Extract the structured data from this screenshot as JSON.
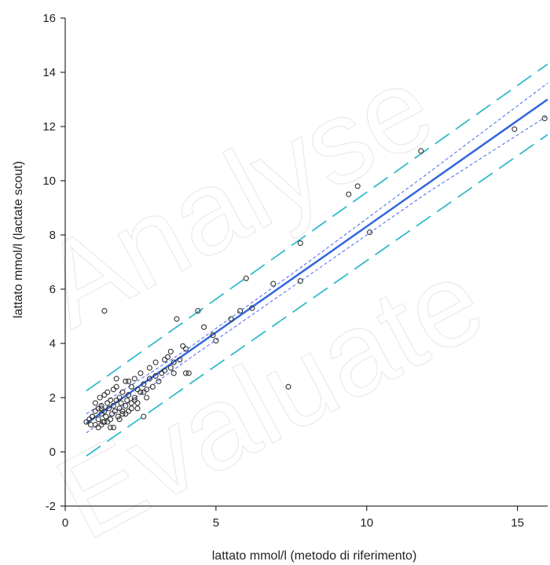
{
  "chart_data": {
    "type": "scatter",
    "xlabel": "lattato mmol/l (metodo di riferimento)",
    "ylabel": "lattato mmol/l (lactate scout)",
    "xlim": [
      0,
      16
    ],
    "ylim": [
      -2,
      16
    ],
    "xticks": [
      "0",
      "5",
      "10",
      "15"
    ],
    "yticks": [
      "-2",
      "0",
      "2",
      "4",
      "6",
      "8",
      "10",
      "12",
      "14",
      "16"
    ],
    "watermark": [
      "Analyse",
      "Evaluate"
    ],
    "grid": false,
    "colors": {
      "points": "#333333",
      "regression": "#3366dd",
      "confidence": "#4466ee",
      "prediction": "#33bbcc"
    },
    "series": [
      {
        "type": "points",
        "x": [
          0.7,
          0.8,
          0.85,
          0.9,
          1.0,
          1.0,
          1.1,
          1.1,
          1.15,
          1.2,
          1.2,
          1.25,
          1.3,
          1.3,
          1.35,
          1.4,
          1.4,
          1.45,
          1.5,
          1.5,
          1.55,
          1.6,
          1.6,
          1.65,
          1.7,
          1.7,
          1.75,
          1.8,
          1.8,
          1.85,
          1.9,
          1.9,
          2.0,
          2.0,
          2.05,
          2.1,
          2.1,
          2.2,
          2.2,
          2.3,
          2.3,
          2.4,
          2.4,
          2.5,
          2.5,
          2.6,
          2.6,
          2.7,
          2.8,
          2.8,
          2.9,
          3.0,
          3.0,
          3.1,
          3.2,
          3.3,
          3.3,
          3.4,
          3.5,
          3.5,
          3.6,
          3.6,
          3.7,
          3.8,
          3.9,
          4.0,
          4.0,
          4.1,
          4.4,
          4.6,
          4.9,
          5.0,
          5.5,
          5.8,
          6.0,
          6.2,
          6.9,
          7.4,
          7.8,
          7.8,
          9.4,
          9.7,
          10.1,
          11.8,
          14.9,
          15.9,
          1.3,
          1.1,
          1.2,
          1.4,
          1.5,
          1.0,
          0.9,
          1.6,
          1.8,
          2.0,
          2.2,
          2.4,
          2.6,
          2.1,
          1.7,
          1.3,
          1.9,
          2.3,
          2.7,
          1.2
        ],
        "y": [
          1.1,
          1.2,
          1.0,
          1.3,
          1.5,
          1.8,
          1.2,
          1.6,
          2.0,
          1.4,
          1.7,
          1.1,
          1.5,
          2.1,
          1.3,
          1.8,
          2.2,
          1.6,
          1.2,
          1.9,
          1.4,
          1.7,
          2.3,
          1.5,
          1.9,
          2.4,
          1.3,
          1.6,
          2.0,
          1.8,
          1.4,
          2.2,
          1.7,
          2.6,
          1.9,
          1.5,
          2.1,
          1.8,
          2.4,
          2.0,
          2.7,
          1.6,
          2.3,
          2.2,
          2.9,
          1.3,
          2.5,
          2.0,
          2.7,
          3.1,
          2.4,
          2.8,
          3.3,
          2.6,
          2.9,
          3.0,
          3.4,
          3.5,
          3.1,
          3.7,
          2.9,
          3.3,
          4.9,
          3.4,
          3.9,
          2.9,
          3.8,
          2.9,
          5.2,
          4.6,
          4.3,
          4.1,
          4.9,
          5.2,
          6.4,
          5.3,
          6.2,
          2.4,
          7.7,
          6.3,
          9.5,
          9.8,
          8.1,
          11.1,
          11.9,
          12.3,
          5.2,
          0.9,
          1.0,
          1.1,
          0.9,
          1.0,
          1.3,
          0.9,
          1.2,
          1.4,
          1.6,
          1.8,
          2.2,
          2.6,
          2.7,
          1.1,
          1.5,
          1.9,
          2.3,
          1.6
        ]
      },
      {
        "type": "regression",
        "x": [
          0.7,
          16
        ],
        "y": [
          1.05,
          13.0
        ]
      },
      {
        "type": "confidence-upper",
        "x": [
          0.7,
          4,
          8,
          12,
          16
        ],
        "y": [
          1.4,
          3.75,
          6.95,
          10.25,
          13.6
        ]
      },
      {
        "type": "confidence-lower",
        "x": [
          0.7,
          4,
          8,
          12,
          16
        ],
        "y": [
          0.7,
          3.35,
          6.45,
          9.55,
          12.4
        ]
      },
      {
        "type": "prediction-upper",
        "x": [
          0.7,
          16
        ],
        "y": [
          2.25,
          14.3
        ]
      },
      {
        "type": "prediction-lower",
        "x": [
          0.7,
          16
        ],
        "y": [
          -0.15,
          11.7
        ]
      }
    ]
  }
}
